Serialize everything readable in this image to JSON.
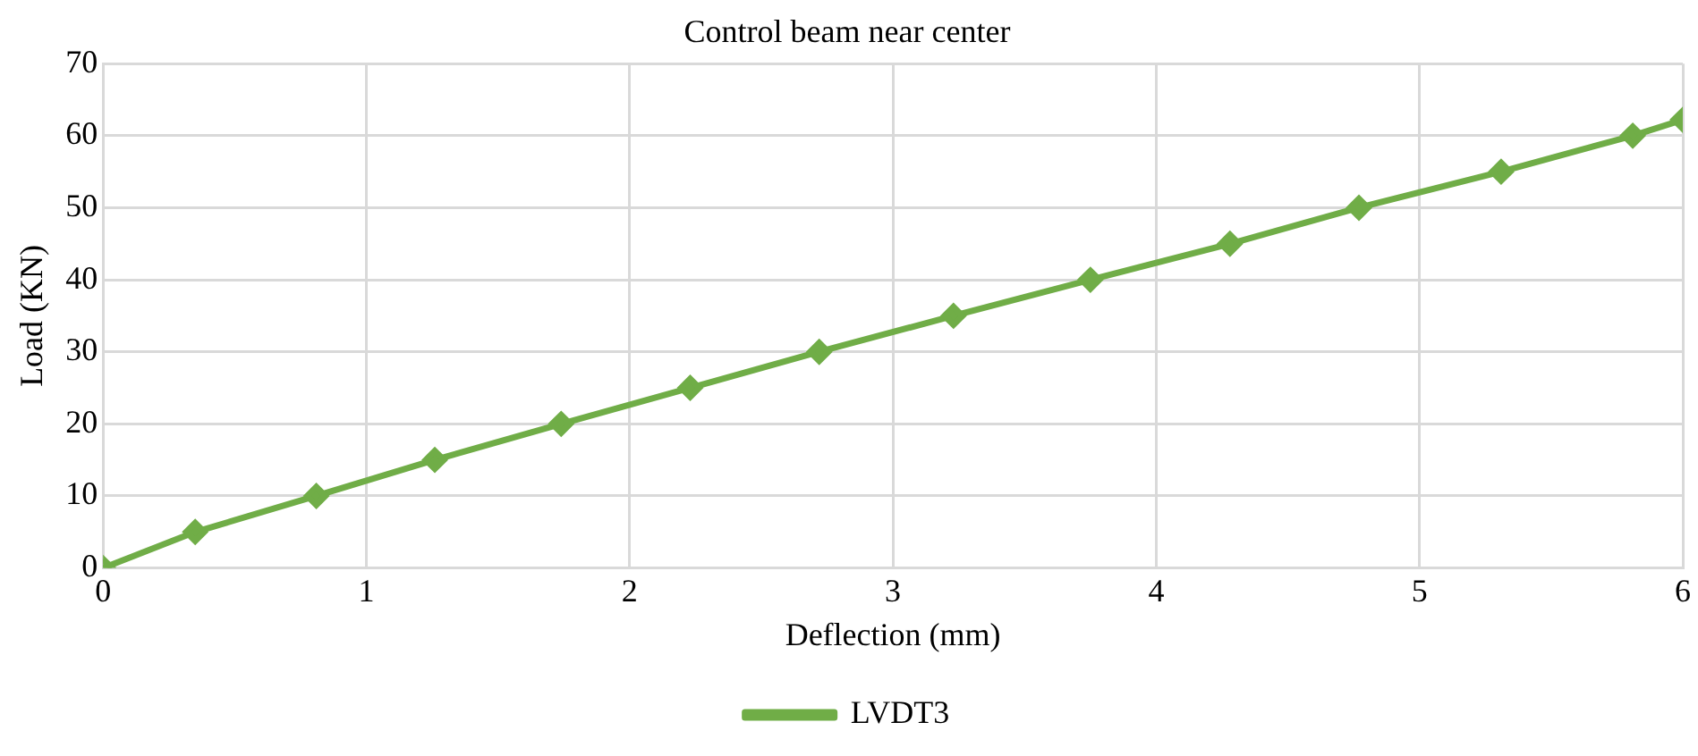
{
  "chart_data": {
    "type": "line",
    "title": "Control beam near center",
    "xlabel": "Deflection (mm)",
    "ylabel": "Load (KN)",
    "xlim": [
      0,
      6
    ],
    "xticks": [
      0,
      1,
      2,
      3,
      4,
      5,
      6
    ],
    "ylim": [
      0,
      70
    ],
    "yticks": [
      0,
      10,
      20,
      30,
      40,
      50,
      60,
      70
    ],
    "series": [
      {
        "name": "LVDT3",
        "color": "#70ad47",
        "x": [
          0,
          0.35,
          0.81,
          1.26,
          1.74,
          2.23,
          2.72,
          3.23,
          3.75,
          4.28,
          4.77,
          5.31,
          5.81,
          6
        ],
        "values": [
          0,
          5,
          10,
          15,
          20,
          25,
          30,
          35,
          40,
          45,
          50,
          55,
          60,
          62.2
        ]
      }
    ],
    "grid": true,
    "legend": "bottom",
    "marker": "diamond",
    "line_style": "solid"
  }
}
